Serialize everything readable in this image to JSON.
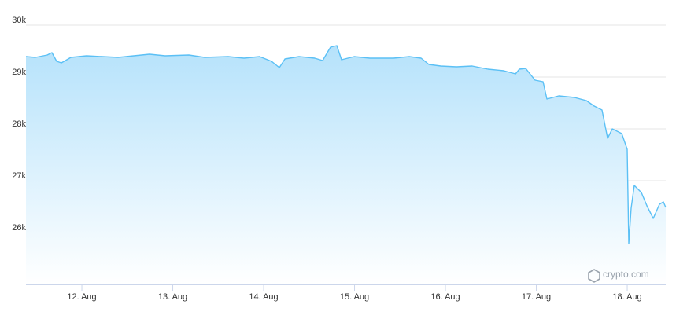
{
  "chart_data": {
    "type": "area",
    "color": "#5bc0f5",
    "grid": true,
    "watermark": "crypto.com",
    "xlim": [
      11.385,
      18.424
    ],
    "xticks": [
      {
        "value": 12,
        "label": "12. Aug"
      },
      {
        "value": 13,
        "label": "13. Aug"
      },
      {
        "value": 14,
        "label": "14. Aug"
      },
      {
        "value": 15,
        "label": "15. Aug"
      },
      {
        "value": 16,
        "label": "16. Aug"
      },
      {
        "value": 17,
        "label": "17. Aug"
      },
      {
        "value": 18,
        "label": "18. Aug"
      }
    ],
    "ylim": [
      25000,
      30000
    ],
    "yticks": [
      {
        "value": 26000,
        "label": "26k"
      },
      {
        "value": 27000,
        "label": "27k"
      },
      {
        "value": 28000,
        "label": "28k"
      },
      {
        "value": 29000,
        "label": "29k"
      },
      {
        "value": 30000,
        "label": "30k"
      }
    ],
    "x": [
      11.385,
      11.489,
      11.619,
      11.671,
      11.723,
      11.775,
      11.879,
      12.052,
      12.225,
      12.398,
      12.571,
      12.744,
      12.917,
      13.177,
      13.35,
      13.61,
      13.783,
      13.956,
      14.086,
      14.173,
      14.234,
      14.389,
      14.562,
      14.649,
      14.736,
      14.805,
      14.857,
      14.996,
      15.169,
      15.429,
      15.602,
      15.732,
      15.818,
      15.948,
      16.121,
      16.294,
      16.468,
      16.641,
      16.771,
      16.814,
      16.883,
      16.944,
      16.987,
      17.074,
      17.117,
      17.247,
      17.42,
      17.55,
      17.637,
      17.723,
      17.784,
      17.836,
      17.94,
      18.0,
      18.017,
      18.043,
      18.078,
      18.156,
      18.217,
      18.286,
      18.355,
      18.398,
      18.424
    ],
    "values": [
      29394,
      29379,
      29424,
      29470,
      29303,
      29273,
      29379,
      29409,
      29394,
      29379,
      29409,
      29439,
      29409,
      29424,
      29379,
      29394,
      29364,
      29394,
      29303,
      29182,
      29348,
      29394,
      29364,
      29318,
      29576,
      29606,
      29333,
      29394,
      29364,
      29364,
      29394,
      29364,
      29242,
      29212,
      29197,
      29212,
      29152,
      29121,
      29061,
      29152,
      29167,
      29030,
      28939,
      28909,
      28576,
      28636,
      28606,
      28545,
      28439,
      28364,
      27818,
      28000,
      27909,
      27606,
      25788,
      26470,
      26909,
      26773,
      26515,
      26273,
      26545,
      26591,
      26485
    ]
  }
}
